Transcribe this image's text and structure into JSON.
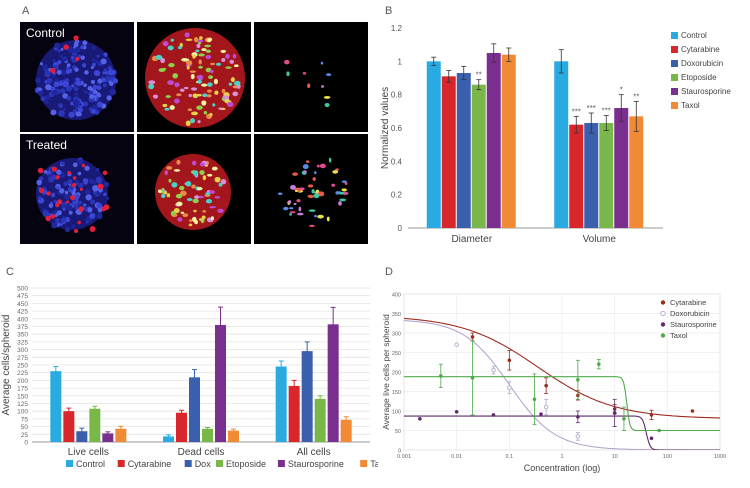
{
  "panels": {
    "a": {
      "letter": "A",
      "row_labels": [
        "Control",
        "Treated"
      ]
    },
    "b": {
      "letter": "B"
    },
    "c": {
      "letter": "C"
    },
    "d": {
      "letter": "D"
    }
  },
  "chart_data": [
    {
      "type": "bar",
      "panel": "B",
      "categories": [
        "Diameter",
        "Volume"
      ],
      "series": [
        {
          "name": "Control",
          "color": "#29abe2",
          "values": [
            1.0,
            1.0
          ],
          "errors": [
            0.025,
            0.07
          ],
          "marks": [
            "",
            ""
          ]
        },
        {
          "name": "Cytarabine",
          "color": "#d9262b",
          "values": [
            0.91,
            0.62
          ],
          "errors": [
            0.035,
            0.05
          ],
          "marks": [
            "",
            "***"
          ]
        },
        {
          "name": "Doxorubicin",
          "color": "#3a5fad",
          "values": [
            0.93,
            0.63
          ],
          "errors": [
            0.04,
            0.06
          ],
          "marks": [
            "",
            "***"
          ]
        },
        {
          "name": "Etoposide",
          "color": "#79b848",
          "values": [
            0.86,
            0.63
          ],
          "errors": [
            0.03,
            0.045
          ],
          "marks": [
            "**",
            "***"
          ]
        },
        {
          "name": "Staurosporine",
          "color": "#7a2f8f",
          "values": [
            1.05,
            0.72
          ],
          "errors": [
            0.055,
            0.08
          ],
          "marks": [
            "",
            "*"
          ]
        },
        {
          "name": "Taxol",
          "color": "#f08a35",
          "values": [
            1.04,
            0.67
          ],
          "errors": [
            0.04,
            0.09
          ],
          "marks": [
            "",
            "**"
          ]
        }
      ],
      "xlabel": "",
      "ylabel": "Normalized values",
      "ylim": [
        0,
        1.2
      ],
      "yticks": [
        "0",
        "0.2",
        "0.4",
        "0.6",
        "0.8",
        "1",
        "1.2"
      ],
      "grid": false,
      "legend": "right"
    },
    {
      "type": "bar",
      "panel": "C",
      "categories": [
        "Live cells",
        "Dead cells",
        "All cells"
      ],
      "series": [
        {
          "name": "Control",
          "color": "#29abe2",
          "values": [
            230,
            18,
            245
          ],
          "errors": [
            15,
            5,
            18
          ]
        },
        {
          "name": "Cytarabine",
          "color": "#d9262b",
          "values": [
            100,
            95,
            182
          ],
          "errors": [
            10,
            8,
            18
          ]
        },
        {
          "name": "Dox",
          "color": "#3a5fad",
          "values": [
            35,
            210,
            295
          ],
          "errors": [
            10,
            25,
            30
          ]
        },
        {
          "name": "Etoposide",
          "color": "#79b848",
          "values": [
            108,
            43,
            140
          ],
          "errors": [
            8,
            4,
            10
          ]
        },
        {
          "name": "Staurosporine",
          "color": "#7a2f8f",
          "values": [
            28,
            380,
            382
          ],
          "errors": [
            5,
            58,
            55
          ]
        },
        {
          "name": "Taxol",
          "color": "#f08a35",
          "values": [
            43,
            37,
            72
          ],
          "errors": [
            8,
            5,
            10
          ]
        }
      ],
      "xlabel": "",
      "ylabel": "Average cells/spheroid",
      "ylim": [
        0,
        500
      ],
      "yticks": [
        "0",
        "25",
        "50",
        "75",
        "100",
        "125",
        "150",
        "175",
        "200",
        "225",
        "250",
        "275",
        "300",
        "325",
        "350",
        "375",
        "400",
        "425",
        "450",
        "475",
        "500"
      ],
      "grid": true,
      "legend": "bottom"
    },
    {
      "type": "scatter",
      "panel": "D",
      "xscale": "log",
      "xlim": [
        0.001,
        1000
      ],
      "ylim": [
        0,
        400
      ],
      "xticks": [
        "0.001",
        "0.01",
        "0.1",
        "1",
        "10",
        "100",
        "1000"
      ],
      "yticks": [
        "0",
        "50",
        "100",
        "150",
        "200",
        "250",
        "300",
        "350",
        "400"
      ],
      "xlabel": "Concentration (log)",
      "ylabel": "Average live cells per spheroid",
      "grid": true,
      "legend": "top-right",
      "series": [
        {
          "name": "Cytarabine",
          "color": "#9c2b1f",
          "marker": "filled",
          "x": [
            0.02,
            0.1,
            0.5,
            2,
            10,
            50,
            300
          ],
          "y": [
            290,
            230,
            165,
            140,
            105,
            90,
            100
          ],
          "errors": [
            10,
            25,
            20,
            12,
            12,
            12,
            0
          ],
          "fit": {
            "top": 345,
            "bottom": 80,
            "ec50": 0.35,
            "hill": 0.6
          }
        },
        {
          "name": "Doxorubicin",
          "color": "#b7a7cf",
          "marker": "open",
          "x": [
            0.01,
            0.05,
            0.1,
            0.5,
            2
          ],
          "y": [
            270,
            205,
            160,
            110,
            35
          ],
          "errors": [
            0,
            10,
            15,
            20,
            10
          ],
          "fit": {
            "top": 335,
            "bottom": 0,
            "ec50": 0.1,
            "hill": 1.0
          }
        },
        {
          "name": "Staurosporine",
          "color": "#5e2a6a",
          "marker": "filled",
          "x": [
            0.002,
            0.01,
            0.05,
            0.4,
            2,
            10,
            50
          ],
          "y": [
            80,
            98,
            90,
            92,
            85,
            95,
            30
          ],
          "errors": [
            0,
            0,
            0,
            0,
            15,
            35,
            0
          ],
          "fit": {
            "top": 87,
            "bottom": 0,
            "ec50": 40,
            "hill": 12
          }
        },
        {
          "name": "Taxol",
          "color": "#4fa94a",
          "marker": "filled",
          "x": [
            0.005,
            0.02,
            0.3,
            2,
            5,
            15,
            70
          ],
          "y": [
            190,
            185,
            130,
            180,
            220,
            80,
            50
          ],
          "errors": [
            30,
            95,
            65,
            50,
            12,
            30,
            0
          ],
          "fit": {
            "top": 188,
            "bottom": 50,
            "ec50": 17,
            "hill": 15
          }
        }
      ]
    }
  ]
}
